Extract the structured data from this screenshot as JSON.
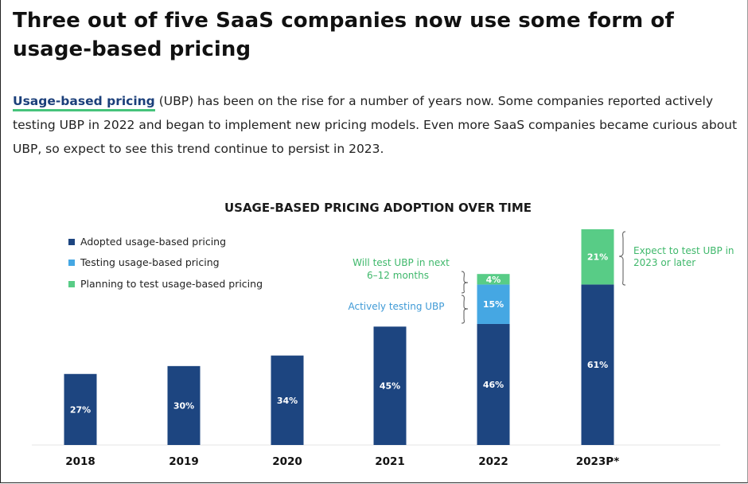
{
  "article": {
    "headline": "Three out of five SaaS companies now use some form of usage-based pricing",
    "intro_link": "Usage-based pricing",
    "intro_text": " (UBP) has been on the rise for a number of years now. Some companies reported actively testing UBP in 2022 and began to implement new pricing models. Even more SaaS companies became curious about UBP, so expect to see this trend continue to persist in 2023."
  },
  "colors": {
    "adopted": "#1d4580",
    "testing": "#45a7e3",
    "planning": "#58cc86",
    "note_green": "#3fb86b",
    "note_blue": "#3f9ad6",
    "link": "#1b3f7a"
  },
  "chart_data": {
    "type": "bar",
    "stacked": true,
    "title": "USAGE-BASED PRICING ADOPTION OVER TIME",
    "categories": [
      "2018",
      "2019",
      "2020",
      "2021",
      "2022",
      "2023P*"
    ],
    "series": [
      {
        "name": "Adopted usage-based pricing",
        "values": [
          27,
          30,
          34,
          45,
          46,
          61
        ],
        "labels": [
          "27%",
          "30%",
          "34%",
          "45%",
          "46%",
          "61%"
        ]
      },
      {
        "name": "Testing usage-based pricing",
        "values": [
          0,
          0,
          0,
          0,
          15,
          0
        ],
        "labels": [
          "",
          "",
          "",
          "",
          "15%",
          ""
        ]
      },
      {
        "name": "Planning to test usage-based pricing",
        "values": [
          0,
          0,
          0,
          0,
          4,
          21
        ],
        "labels": [
          "",
          "",
          "",
          "",
          "4%",
          "21%"
        ]
      }
    ],
    "ylim": [
      0,
      82
    ],
    "legend_position": "top-left",
    "grid": false,
    "annotations": {
      "will_test": [
        "Will test UBP in next",
        "6–12 months"
      ],
      "actively_testing": "Actively testing UBP",
      "expect": [
        "Expect to test UBP in",
        "2023 or later"
      ]
    }
  }
}
